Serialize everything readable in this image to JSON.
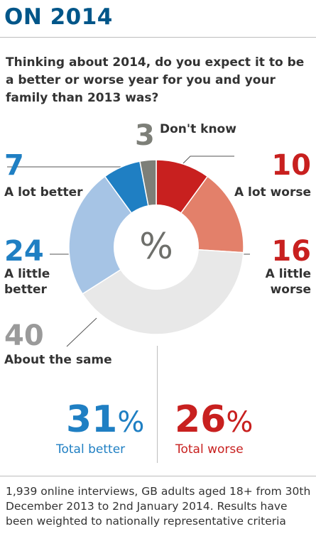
{
  "header": {
    "title": "ON 2014",
    "question": "Thinking about 2014, do you expect it to be a better or worse year for you and your family than 2013 was?"
  },
  "chart_data": {
    "type": "pie",
    "donut": true,
    "center_label": "%",
    "slices": [
      {
        "label": "A lot worse",
        "value": 10,
        "color": "#c8201f"
      },
      {
        "label": "A little worse",
        "value": 16,
        "color": "#e3806a"
      },
      {
        "label": "About the same",
        "value": 40,
        "color": "#e8e8e8"
      },
      {
        "label": "A little better",
        "value": 24,
        "color": "#a6c4e5"
      },
      {
        "label": "A lot better",
        "value": 7,
        "color": "#1f7fc3"
      },
      {
        "label": "Don't know",
        "value": 3,
        "color": "#7d7f78"
      }
    ],
    "totals": [
      {
        "value": "31",
        "unit": "%",
        "label": "Total better",
        "color": "#1f7fc3"
      },
      {
        "value": "26",
        "unit": "%",
        "label": "Total worse",
        "color": "#c8201f"
      }
    ],
    "label_text": {
      "lot_better": [
        "A lot better"
      ],
      "little_better": [
        "A little",
        "better"
      ],
      "same": [
        "About the same"
      ],
      "lot_worse": [
        "A lot worse"
      ],
      "little_worse": [
        "A little",
        "worse"
      ],
      "dont_know": [
        "Don't know"
      ]
    }
  },
  "colors": {
    "title": "#005689",
    "text": "#333333",
    "leader": "#555555",
    "same_number": "#9a9a9a",
    "center_symbol": "#6e6f6b"
  },
  "footer": {
    "note": "1,939 online interviews, GB adults aged 18+ from 30th December 2013 to 2nd January 2014. Results have been weighted to nationally representative criteria"
  }
}
